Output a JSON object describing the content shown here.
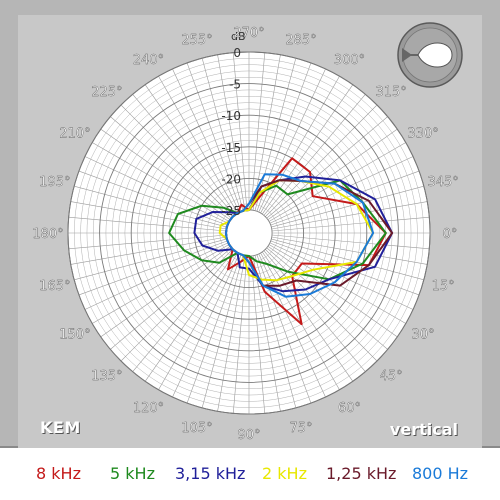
{
  "brand": "KEM",
  "view_label": "vertical",
  "orientation_icon": "cardioid-arrow-icon",
  "chart_data": {
    "type": "polar-line",
    "radial_axis": {
      "unit": "dB",
      "range": [
        -25,
        0
      ],
      "tick_labels": [
        "0",
        "-5",
        "-10",
        "-15",
        "-20",
        "-25"
      ]
    },
    "angle_labels": [
      "0°",
      "15°",
      "30°",
      "45°",
      "60°",
      "75°",
      "90°",
      "105°",
      "120°",
      "135°",
      "150°",
      "165°",
      "180°",
      "195°",
      "210°",
      "225°",
      "240°",
      "255°",
      "270°",
      "285°",
      "300°",
      "315°",
      "330°",
      "345°"
    ],
    "angles_deg": [
      0,
      15,
      30,
      45,
      60,
      75,
      90,
      105,
      120,
      135,
      150,
      165,
      180,
      195,
      210,
      225,
      240,
      255,
      270,
      285,
      300,
      315,
      330,
      345
    ],
    "series": [
      {
        "name": "8 kHz",
        "color": "#c41a1a",
        "values": [
          -7,
          -9,
          -19,
          -19,
          -12,
          -19,
          -25,
          -24,
          -22,
          -25,
          -25,
          -25,
          -25,
          -25,
          -25,
          -25,
          -25,
          -24,
          -25,
          -23,
          -15,
          -15,
          -17,
          -11
        ]
      },
      {
        "name": "5 kHz",
        "color": "#1f8a1f",
        "values": [
          -7,
          -10,
          -14,
          -20,
          -23,
          -24,
          -25,
          -25,
          -25,
          -22,
          -20,
          -18,
          -16,
          -17,
          -20,
          -23,
          -25,
          -25,
          -25,
          -22,
          -20,
          -20,
          -12,
          -10
        ]
      },
      {
        "name": "3,15 kHz",
        "color": "#20209a",
        "values": [
          -6,
          -8,
          -14,
          -16,
          -18,
          -20,
          -23,
          -23,
          -25,
          -25,
          -23,
          -21,
          -20,
          -20,
          -22,
          -24,
          -25,
          -25,
          -25,
          -21,
          -19,
          -16,
          -12,
          -8
        ]
      },
      {
        "name": "2 kHz",
        "color": "#e8e800",
        "values": [
          -9,
          -11,
          -17,
          -19,
          -20,
          -21,
          -22,
          -25,
          -25,
          -25,
          -25,
          -25,
          -24,
          -24,
          -25,
          -25,
          -25,
          -25,
          -25,
          -22,
          -19,
          -17,
          -14,
          -11
        ]
      },
      {
        "name": "1,25 kHz",
        "color": "#6a1a2a",
        "values": [
          -6,
          -9,
          -12,
          -18,
          -19,
          -20,
          -24,
          -25,
          -25,
          -25,
          -25,
          -25,
          -25,
          -25,
          -25,
          -25,
          -25,
          -25,
          -24,
          -21,
          -19,
          -17,
          -13,
          -9
        ]
      },
      {
        "name": "800 Hz",
        "color": "#1a7ad8",
        "values": [
          -9,
          -11,
          -13,
          -15,
          -17,
          -20,
          -24,
          -25,
          -25,
          -25,
          -25,
          -25,
          -25,
          -25,
          -25,
          -25,
          -25,
          -25,
          -24,
          -19,
          -18,
          -17,
          -13,
          -10
        ]
      }
    ],
    "grid": true
  }
}
